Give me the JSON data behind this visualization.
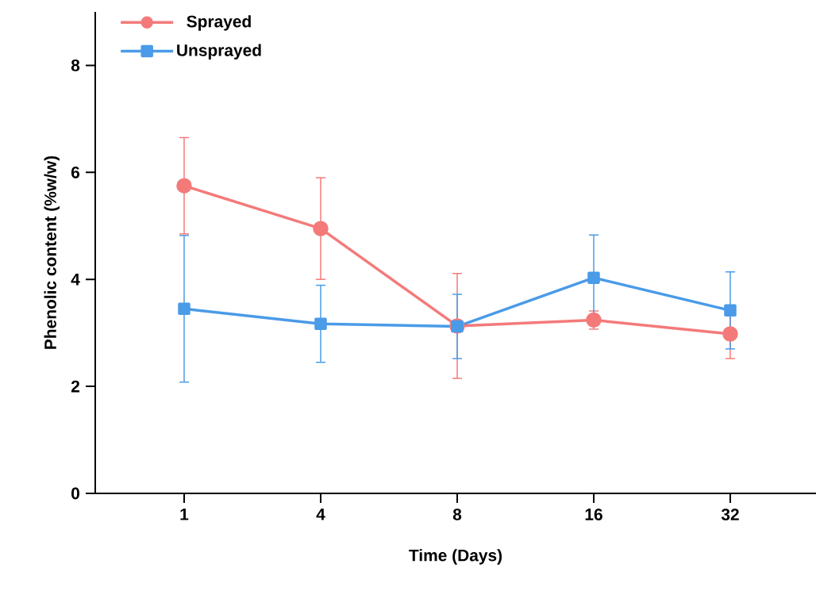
{
  "chart_data": {
    "type": "line",
    "xlabel": "Time (Days)",
    "ylabel": "Phenolic content (%w/w)",
    "categories": [
      "1",
      "4",
      "8",
      "16",
      "32"
    ],
    "series": [
      {
        "name": "Sprayed",
        "color": "#f47a7a",
        "marker": "circle",
        "values": [
          5.75,
          4.95,
          3.13,
          3.24,
          2.98
        ],
        "errors": [
          0.9,
          0.95,
          0.98,
          0.17,
          0.46
        ]
      },
      {
        "name": "Unsprayed",
        "color": "#4a9be8",
        "marker": "square",
        "values": [
          3.45,
          3.17,
          3.12,
          4.03,
          3.42
        ],
        "errors": [
          1.37,
          0.72,
          0.6,
          0.8,
          0.72
        ]
      }
    ],
    "ylim": [
      0,
      9
    ],
    "yticks": [
      0,
      2,
      4,
      6,
      8
    ],
    "grid": false,
    "legend": "top left"
  }
}
